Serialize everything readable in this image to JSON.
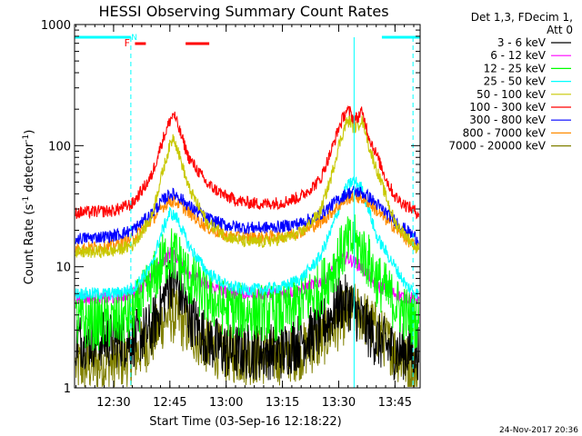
{
  "chart_data": {
    "type": "line",
    "title": "HESSI Observing Summary Count Rates",
    "xlabel": "Start Time (03-Sep-16 12:18:22)",
    "ylabel_main": "Count Rate (s",
    "ylabel_sup1": "-1",
    "ylabel_mid": " detector",
    "ylabel_sup2": "-1",
    "ylabel_end": ")",
    "yscale": "log",
    "ylim": [
      1,
      1000
    ],
    "xlim": [
      19.6,
      111.7
    ],
    "x_unit": "minutes after 12:00",
    "x_ticks": [
      {
        "value": 30,
        "label": "12:30"
      },
      {
        "value": 45,
        "label": "12:45"
      },
      {
        "value": 60,
        "label": "13:00"
      },
      {
        "value": 75,
        "label": "13:15"
      },
      {
        "value": 90,
        "label": "13:30"
      },
      {
        "value": 105,
        "label": "13:45"
      }
    ],
    "y_ticks": [
      {
        "value": 1,
        "label": "1"
      },
      {
        "value": 10,
        "label": "10"
      },
      {
        "value": 100,
        "label": "100"
      },
      {
        "value": 1000,
        "label": "1000"
      }
    ],
    "legend_header": [
      "Det 1,3, FDecim 1,",
      "Att 0"
    ],
    "timestamp": "24-Nov-2017 20:36",
    "flags": [
      {
        "label": "F",
        "color": "#ff0000"
      },
      {
        "label": "N",
        "color": "#00ffff"
      }
    ],
    "night_intervals": [
      [
        19.6,
        34.6
      ],
      [
        101.5,
        111.7
      ]
    ],
    "flare_intervals": [
      [
        35.7,
        38.6
      ],
      [
        49.2,
        55.5
      ]
    ],
    "boundaries": [
      {
        "x": 34.6,
        "style": "dashed",
        "color": "#00ffff"
      },
      {
        "x": 94.1,
        "style": "solid",
        "color": "#00ffff"
      },
      {
        "x": 109.8,
        "style": "dashed",
        "color": "#00ffff"
      }
    ],
    "series": [
      {
        "name": "3 - 6 keV",
        "color": "#000000",
        "x": [
          20,
          30,
          35,
          40,
          43,
          45,
          47,
          50,
          55,
          60,
          65,
          70,
          75,
          80,
          85,
          88,
          90,
          93,
          95,
          98,
          100,
          105,
          108,
          111
        ],
        "values": [
          2.5,
          2.5,
          2.5,
          3,
          5,
          8,
          7,
          4,
          2.5,
          2,
          2,
          2,
          2,
          2.5,
          3,
          4,
          5,
          5,
          4,
          3,
          2.5,
          2,
          2,
          2
        ]
      },
      {
        "name": "6 - 12 keV",
        "color": "#ff00ff",
        "x": [
          20,
          30,
          35,
          40,
          43,
          45,
          47,
          50,
          55,
          60,
          65,
          70,
          75,
          80,
          85,
          88,
          90,
          92,
          94,
          96,
          98,
          100,
          105,
          108,
          111
        ],
        "values": [
          5.5,
          5.5,
          6,
          8,
          11,
          13,
          12,
          9,
          7,
          6.2,
          6,
          6,
          6,
          6.5,
          7.5,
          9,
          11,
          12,
          11,
          10,
          8.5,
          7,
          6,
          5.5,
          5.5
        ]
      },
      {
        "name": "12 - 25 keV",
        "color": "#00ff00",
        "x": [
          20,
          30,
          35,
          40,
          43,
          45,
          47,
          50,
          55,
          60,
          65,
          70,
          75,
          80,
          85,
          88,
          90,
          92,
          94,
          96,
          98,
          100,
          105,
          108,
          111
        ],
        "values": [
          3.5,
          3.5,
          4,
          7,
          11,
          13,
          12,
          8,
          5.5,
          4.5,
          4.2,
          4.2,
          4.2,
          5,
          6.5,
          9,
          12,
          15,
          16,
          14,
          11,
          8,
          5,
          4,
          3.5
        ]
      },
      {
        "name": "25 - 50 keV",
        "color": "#00ffff",
        "x": [
          20,
          30,
          35,
          40,
          43,
          45,
          47,
          50,
          55,
          60,
          65,
          70,
          75,
          80,
          85,
          88,
          90,
          92,
          94,
          96,
          98,
          100,
          105,
          108,
          111
        ],
        "values": [
          6,
          6,
          6.5,
          10,
          20,
          28,
          25,
          15,
          9,
          7,
          6.5,
          6.5,
          6.8,
          8,
          12,
          20,
          30,
          45,
          52,
          45,
          30,
          18,
          10,
          7,
          6
        ]
      },
      {
        "name": "50 - 100 keV",
        "color": "#c8c800",
        "x": [
          20,
          30,
          35,
          40,
          43,
          45,
          46,
          47,
          50,
          55,
          60,
          65,
          70,
          75,
          80,
          85,
          88,
          90,
          92,
          93,
          94,
          95,
          96,
          97,
          98,
          100,
          103,
          105,
          108,
          111
        ],
        "values": [
          13,
          13.5,
          15,
          25,
          60,
          100,
          120,
          95,
          45,
          23,
          18,
          16,
          16,
          17,
          19,
          28,
          55,
          100,
          155,
          160,
          140,
          145,
          165,
          140,
          100,
          65,
          35,
          23,
          18,
          14
        ]
      },
      {
        "name": "100 - 300 keV",
        "color": "#ff0000",
        "x": [
          20,
          30,
          35,
          40,
          43,
          45,
          46,
          47,
          50,
          55,
          60,
          65,
          70,
          75,
          80,
          85,
          88,
          90,
          92,
          93,
          94,
          95,
          96,
          97,
          98,
          100,
          103,
          105,
          108,
          111
        ],
        "values": [
          28,
          29,
          33,
          55,
          110,
          160,
          185,
          150,
          80,
          48,
          38,
          34,
          33,
          34,
          38,
          52,
          90,
          140,
          195,
          190,
          165,
          170,
          190,
          160,
          120,
          85,
          50,
          38,
          32,
          28
        ]
      },
      {
        "name": "300 - 800 keV",
        "color": "#0000ff",
        "x": [
          20,
          30,
          35,
          40,
          43,
          45,
          47,
          50,
          55,
          60,
          65,
          70,
          75,
          80,
          85,
          88,
          90,
          92,
          94,
          96,
          98,
          100,
          105,
          108,
          111
        ],
        "values": [
          17,
          18,
          20,
          27,
          35,
          40,
          39,
          32,
          25,
          22,
          21,
          21,
          21.5,
          23,
          27,
          32,
          36,
          40,
          42,
          41,
          38,
          33,
          24,
          20,
          17
        ]
      },
      {
        "name": "800 - 7000 keV",
        "color": "#ff8c00",
        "x": [
          20,
          30,
          35,
          40,
          43,
          45,
          47,
          50,
          55,
          60,
          65,
          70,
          75,
          80,
          85,
          88,
          90,
          92,
          94,
          96,
          98,
          100,
          105,
          108,
          111
        ],
        "values": [
          14,
          15,
          17,
          24,
          31,
          35,
          34,
          28,
          21,
          18,
          17.5,
          17.5,
          18,
          19.5,
          23,
          28,
          32,
          36,
          38,
          37,
          34,
          29,
          21,
          17,
          14
        ]
      },
      {
        "name": "7000 - 20000 keV",
        "color": "#808000",
        "x": [
          20,
          30,
          35,
          40,
          43,
          45,
          47,
          50,
          55,
          60,
          65,
          70,
          75,
          80,
          85,
          88,
          90,
          92,
          94,
          96,
          98,
          100,
          105,
          108,
          111
        ],
        "values": [
          1.5,
          1.6,
          1.8,
          2.5,
          3.5,
          4,
          3.8,
          3,
          2.2,
          1.9,
          1.8,
          1.8,
          1.8,
          2,
          2.4,
          3,
          3.5,
          4,
          4.3,
          4,
          3.5,
          3,
          2,
          1.6,
          1.4
        ]
      }
    ]
  }
}
